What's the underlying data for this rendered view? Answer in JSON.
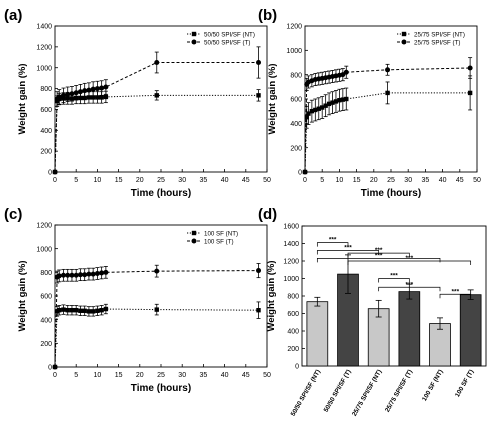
{
  "chart_data": [
    {
      "panel": "(a)",
      "type": "line",
      "xlabel": "Time (hours)",
      "ylabel": "Weight gain (%)",
      "xlim": [
        0,
        50
      ],
      "ylim": [
        0,
        1400
      ],
      "xticks": [
        "0",
        "5",
        "10",
        "15",
        "20",
        "25",
        "30",
        "35",
        "40",
        "45",
        "50"
      ],
      "yticks": [
        "0",
        "200",
        "400",
        "600",
        "800",
        "1000",
        "1200",
        "1400"
      ],
      "legend_position": "top-right",
      "series": [
        {
          "name": "50/50 SPI/SF (NT)",
          "marker": "square",
          "line": "dotted",
          "x": [
            0,
            0.5,
            1,
            2,
            3,
            4,
            5,
            6,
            7,
            8,
            9,
            10,
            11,
            12,
            24,
            48
          ],
          "y": [
            0,
            680,
            700,
            705,
            705,
            705,
            710,
            710,
            710,
            715,
            715,
            715,
            715,
            720,
            735,
            735
          ],
          "err": [
            0,
            50,
            55,
            55,
            55,
            55,
            55,
            55,
            55,
            55,
            55,
            55,
            55,
            55,
            45,
            55
          ]
        },
        {
          "name": "50/50 SPI/SF (T)",
          "marker": "circle",
          "line": "dashed",
          "x": [
            0,
            0.5,
            1,
            2,
            3,
            4,
            5,
            6,
            7,
            8,
            9,
            10,
            11,
            12,
            24,
            48
          ],
          "y": [
            0,
            700,
            720,
            735,
            745,
            750,
            760,
            770,
            780,
            785,
            795,
            800,
            805,
            815,
            1050,
            1050
          ],
          "err": [
            0,
            70,
            70,
            70,
            70,
            70,
            70,
            70,
            70,
            70,
            70,
            70,
            70,
            70,
            100,
            150
          ]
        }
      ]
    },
    {
      "panel": "(b)",
      "type": "line",
      "xlabel": "Time (hours)",
      "ylabel": "Weight gain (%)",
      "xlim": [
        0,
        50
      ],
      "ylim": [
        0,
        1200
      ],
      "xticks": [
        "0",
        "5",
        "10",
        "15",
        "20",
        "25",
        "30",
        "35",
        "40",
        "45",
        "50"
      ],
      "yticks": [
        "0",
        "200",
        "400",
        "600",
        "800",
        "1000",
        "1200"
      ],
      "legend_position": "top-right",
      "series": [
        {
          "name": "25/75 SPI/SF (NT)",
          "marker": "square",
          "line": "dotted",
          "x": [
            0,
            0.5,
            1,
            2,
            3,
            4,
            5,
            6,
            7,
            8,
            9,
            10,
            11,
            12,
            24,
            48
          ],
          "y": [
            0,
            450,
            480,
            500,
            510,
            520,
            530,
            545,
            560,
            570,
            580,
            590,
            595,
            600,
            650,
            650
          ],
          "err": [
            0,
            90,
            90,
            90,
            90,
            90,
            90,
            90,
            90,
            90,
            90,
            90,
            90,
            90,
            90,
            140
          ]
        },
        {
          "name": "25/75 SPI/SF (T)",
          "marker": "circle",
          "line": "dashed",
          "x": [
            0,
            0.5,
            1,
            2,
            3,
            4,
            5,
            6,
            7,
            8,
            9,
            10,
            11,
            12,
            24,
            48
          ],
          "y": [
            0,
            720,
            740,
            750,
            760,
            765,
            770,
            775,
            780,
            785,
            790,
            795,
            800,
            820,
            840,
            855
          ],
          "err": [
            0,
            50,
            50,
            50,
            50,
            50,
            50,
            50,
            50,
            50,
            50,
            50,
            50,
            50,
            45,
            85
          ]
        }
      ]
    },
    {
      "panel": "(c)",
      "type": "line",
      "xlabel": "Time (hours)",
      "ylabel": "Weight gain (%)",
      "xlim": [
        0,
        50
      ],
      "ylim": [
        0,
        1200
      ],
      "xticks": [
        "0",
        "5",
        "10",
        "15",
        "20",
        "25",
        "30",
        "35",
        "40",
        "45",
        "50"
      ],
      "yticks": [
        "0",
        "200",
        "400",
        "600",
        "800",
        "1000",
        "1200"
      ],
      "legend_position": "top-right",
      "series": [
        {
          "name": "100 SF (NT)",
          "marker": "square",
          "line": "dotted",
          "x": [
            0,
            0.5,
            1,
            2,
            3,
            4,
            5,
            6,
            7,
            8,
            9,
            10,
            11,
            12,
            24,
            48
          ],
          "y": [
            0,
            470,
            480,
            485,
            480,
            480,
            480,
            475,
            475,
            470,
            470,
            475,
            480,
            490,
            485,
            480
          ],
          "err": [
            0,
            40,
            40,
            40,
            40,
            40,
            40,
            40,
            40,
            40,
            40,
            40,
            40,
            40,
            45,
            70
          ]
        },
        {
          "name": "100 SF (T)",
          "marker": "circle",
          "line": "dashed",
          "x": [
            0,
            0.5,
            1,
            2,
            3,
            4,
            5,
            6,
            7,
            8,
            9,
            10,
            11,
            12,
            24,
            48
          ],
          "y": [
            0,
            760,
            770,
            775,
            775,
            775,
            775,
            780,
            780,
            785,
            785,
            790,
            795,
            800,
            810,
            815
          ],
          "err": [
            0,
            50,
            50,
            50,
            50,
            50,
            50,
            50,
            50,
            50,
            50,
            50,
            50,
            50,
            50,
            60
          ]
        }
      ]
    },
    {
      "panel": "(d)",
      "type": "bar",
      "ylabel": "Weight gain (%)",
      "ylim": [
        0,
        1600
      ],
      "yticks": [
        "0",
        "200",
        "400",
        "600",
        "800",
        "1000",
        "1200",
        "1400",
        "1600"
      ],
      "categories": [
        "50/50 SPI/SF (NT)",
        "50/50 SPI/SF (T)",
        "25/75 SPI/SF (NT)",
        "25/75 SPI/SF (T)",
        "100 SF (NT)",
        "100 SF (T)"
      ],
      "values": [
        735,
        1050,
        655,
        850,
        485,
        815
      ],
      "errors": [
        50,
        220,
        95,
        85,
        65,
        55
      ],
      "bar_colors": [
        "#c8c8c8",
        "#444444",
        "#c8c8c8",
        "#444444",
        "#c8c8c8",
        "#444444"
      ],
      "significance": [
        {
          "from": 0,
          "to": 1,
          "label": "***"
        },
        {
          "from": 0,
          "to": 2,
          "label": "***"
        },
        {
          "from": 0,
          "to": 4,
          "label": "***"
        },
        {
          "from": 1,
          "to": 3,
          "label": "***"
        },
        {
          "from": 1,
          "to": 5,
          "label": "***"
        },
        {
          "from": 2,
          "to": 3,
          "label": "***"
        },
        {
          "from": 2,
          "to": 4,
          "label": "***"
        },
        {
          "from": 4,
          "to": 5,
          "label": "***"
        }
      ]
    }
  ]
}
